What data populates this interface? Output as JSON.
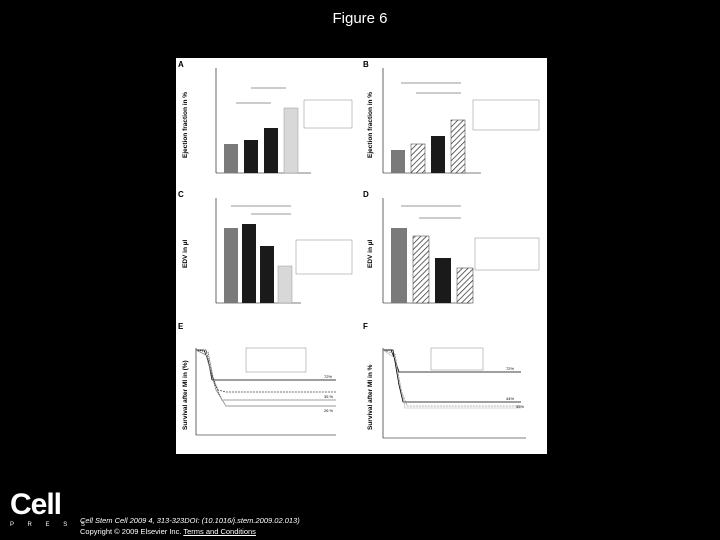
{
  "figure_title": "Figure 6",
  "panels": {
    "A": {
      "label": "A",
      "ylabel": "Ejection fraction in %"
    },
    "B": {
      "label": "B",
      "ylabel": "Ejection fraction in %"
    },
    "C": {
      "label": "C",
      "ylabel": "EDV in µl"
    },
    "D": {
      "label": "D",
      "ylabel": "EDV in µl"
    },
    "E": {
      "label": "E",
      "ylabel": "Survival after MI in (%)"
    },
    "F": {
      "label": "F",
      "ylabel": "Survival after MI in %"
    }
  },
  "chart_data": [
    {
      "panel": "A",
      "type": "bar",
      "ylim": [
        0,
        100
      ],
      "values": [
        28,
        32,
        43,
        62
      ],
      "colors": [
        "#7a7a7a",
        "#1a1a1a",
        "#dcdcdc",
        "#c8c8c8"
      ]
    },
    {
      "panel": "B",
      "type": "bar",
      "ylim": [
        0,
        100
      ],
      "values": [
        22,
        28,
        36,
        52
      ],
      "colors": [
        "#7a7a7a",
        "hatch",
        "#1a1a1a",
        "hatch-light"
      ]
    },
    {
      "panel": "C",
      "type": "bar",
      "ylim": [
        0,
        100
      ],
      "values": [
        68,
        72,
        52,
        34
      ],
      "colors": [
        "#7a7a7a",
        "#1a1a1a",
        "#1a1a1a",
        "#c8c8c8"
      ]
    },
    {
      "panel": "D",
      "type": "bar",
      "ylim": [
        0,
        100
      ],
      "values": [
        68,
        60,
        40,
        30
      ],
      "colors": [
        "#7a7a7a",
        "hatch",
        "#1a1a1a",
        "hatch-light"
      ]
    },
    {
      "panel": "E",
      "type": "line",
      "end_labels": [
        "35 %",
        "26 %"
      ]
    },
    {
      "panel": "F",
      "type": "line",
      "end_labels": [
        "44%",
        "35%"
      ]
    }
  ],
  "logo": {
    "name": "Cell",
    "sub": "P R E S S"
  },
  "citation": {
    "line1": "Cell Stem Cell 2009 4, 313-323DOI: (10.1016/j.stem.2009.02.013)",
    "line2_prefix": "Copyright © 2009 Elsevier Inc.",
    "link": "Terms and Conditions"
  }
}
